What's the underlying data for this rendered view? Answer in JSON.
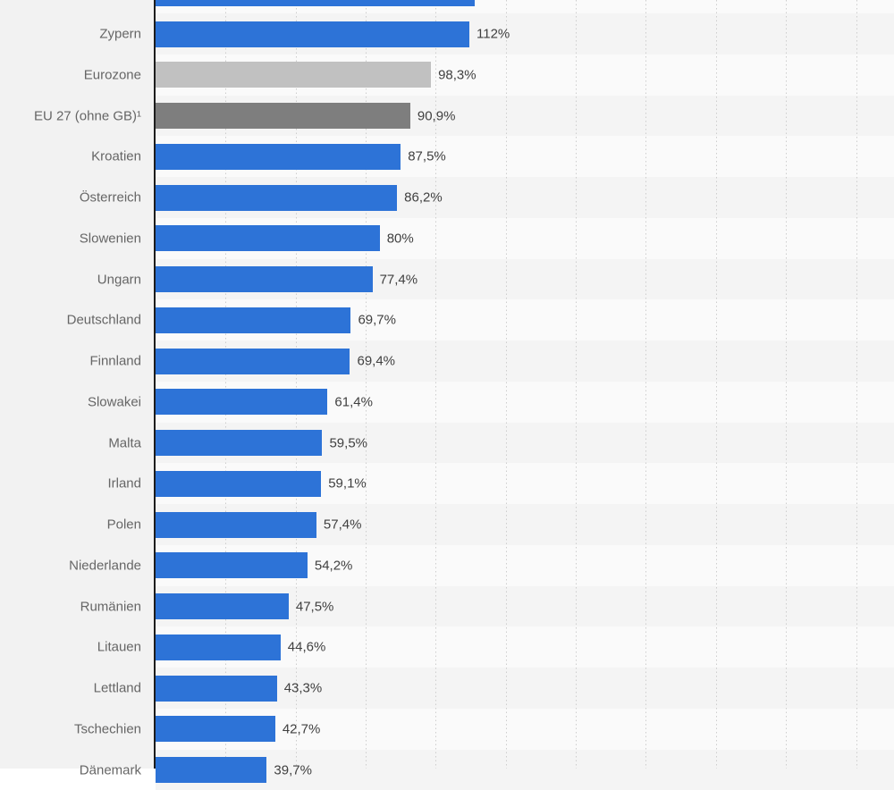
{
  "chart_data": {
    "type": "bar",
    "orientation": "horizontal",
    "title": "",
    "xlabel": "",
    "ylabel": "",
    "categories": [
      "",
      "Zypern",
      "Eurozone",
      "EU 27 (ohne GB)¹",
      "Kroatien",
      "Österreich",
      "Slowenien",
      "Ungarn",
      "Deutschland",
      "Finnland",
      "Slowakei",
      "Malta",
      "Irland",
      "Polen",
      "Niederlande",
      "Rumänien",
      "Litauen",
      "Lettland",
      "Tschechien",
      "Dänemark"
    ],
    "values": [
      113.9,
      112,
      98.3,
      90.9,
      87.5,
      86.2,
      80,
      77.4,
      69.7,
      69.4,
      61.4,
      59.5,
      59.1,
      57.4,
      54.2,
      47.5,
      44.6,
      43.3,
      42.7,
      39.7
    ],
    "value_labels": [
      "",
      "112%",
      "98,3%",
      "90,9%",
      "87,5%",
      "86,2%",
      "80%",
      "77,4%",
      "69,7%",
      "69,4%",
      "61,4%",
      "59,5%",
      "59,1%",
      "57,4%",
      "54,2%",
      "47,5%",
      "44,6%",
      "43,3%",
      "42,7%",
      "39,7%"
    ],
    "bar_colors": [
      "#2d73d7",
      "#2d73d7",
      "#c1c1c1",
      "#7e7e7e",
      "#2d73d7",
      "#2d73d7",
      "#2d73d7",
      "#2d73d7",
      "#2d73d7",
      "#2d73d7",
      "#2d73d7",
      "#2d73d7",
      "#2d73d7",
      "#2d73d7",
      "#2d73d7",
      "#2d73d7",
      "#2d73d7",
      "#2d73d7",
      "#2d73d7",
      "#2d73d7"
    ],
    "partial_rows": {
      "top_row_index": 0,
      "bottom_row_index": 19
    },
    "axis": {
      "min": 0,
      "gridline_step": 25,
      "gridlines_at": [
        25,
        50,
        75,
        100,
        125,
        150,
        175,
        200,
        225,
        250
      ]
    },
    "grid": "vertical-dotted",
    "legend": "none",
    "colors": {
      "bar_default": "#2d73d7",
      "bar_eurozone": "#c1c1c1",
      "bar_eu27": "#7e7e7e",
      "stripe_dark": "#f4f4f4",
      "stripe_light": "#fafafa",
      "label_column_bg": "#f2f2f2",
      "axis_line": "#1d1d1d",
      "gridline": "#cdcdcd",
      "category_text": "#666666",
      "value_text": "#404040"
    }
  }
}
